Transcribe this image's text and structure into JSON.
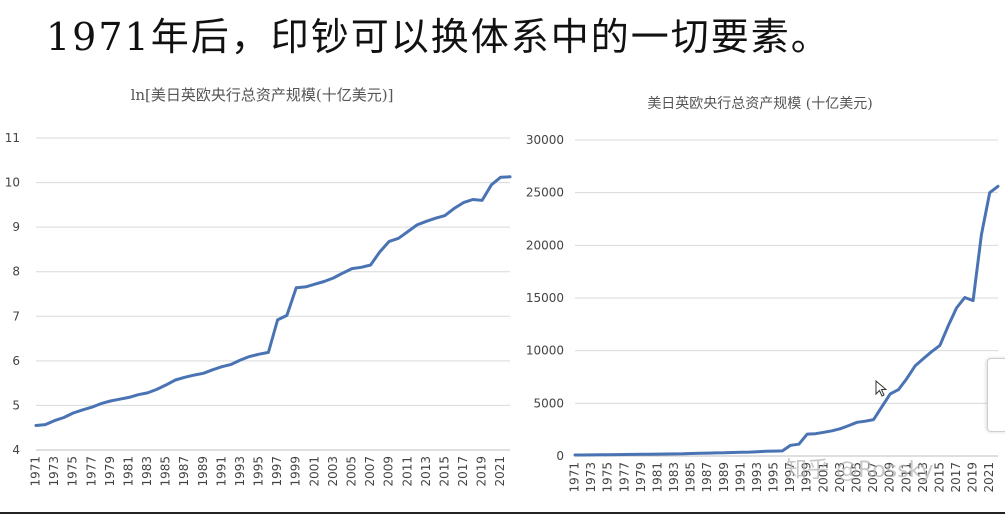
{
  "headline": "1971年后，印钞可以换体系中的一切要素。",
  "watermark": "知乎 @Rossky",
  "chart_data": [
    {
      "type": "line",
      "title": "ln[美日英欧央行总资产规模(十亿美元)]",
      "ylim": [
        4,
        11
      ],
      "yticks": [
        "4",
        "5",
        "6",
        "7",
        "8",
        "9",
        "10",
        "11"
      ],
      "xticks": [
        "1971",
        "1973",
        "1975",
        "1977",
        "1979",
        "1981",
        "1983",
        "1985",
        "1987",
        "1989",
        "1991",
        "1993",
        "1995",
        "1997",
        "1999",
        "2001",
        "2003",
        "2005",
        "2007",
        "2009",
        "2011",
        "2013",
        "2015",
        "2017",
        "2019",
        "2021"
      ],
      "grid": true,
      "x": [
        1971,
        1972,
        1973,
        1974,
        1975,
        1976,
        1977,
        1978,
        1979,
        1980,
        1981,
        1982,
        1983,
        1984,
        1985,
        1986,
        1987,
        1988,
        1989,
        1990,
        1991,
        1992,
        1993,
        1994,
        1995,
        1996,
        1997,
        1998,
        1999,
        2000,
        2001,
        2002,
        2003,
        2004,
        2005,
        2006,
        2007,
        2008,
        2009,
        2010,
        2011,
        2012,
        2013,
        2014,
        2015,
        2016,
        2017,
        2018,
        2019,
        2020,
        2021,
        2022
      ],
      "values": [
        4.55,
        4.57,
        4.66,
        4.73,
        4.83,
        4.9,
        4.96,
        5.04,
        5.1,
        5.14,
        5.18,
        5.24,
        5.28,
        5.36,
        5.46,
        5.57,
        5.63,
        5.68,
        5.72,
        5.8,
        5.87,
        5.92,
        6.02,
        6.1,
        6.15,
        6.19,
        6.92,
        7.02,
        7.64,
        7.66,
        7.72,
        7.78,
        7.86,
        7.97,
        8.07,
        8.1,
        8.15,
        8.45,
        8.68,
        8.75,
        8.9,
        9.05,
        9.13,
        9.2,
        9.26,
        9.42,
        9.55,
        9.62,
        9.6,
        9.95,
        10.12,
        10.13
      ]
    },
    {
      "type": "line",
      "title": "美日英欧央行总资产规模 (十亿美元)",
      "ylim": [
        0,
        30000
      ],
      "yticks": [
        "0",
        "5000",
        "10000",
        "15000",
        "20000",
        "25000",
        "30000"
      ],
      "xticks": [
        "1971",
        "1973",
        "1975",
        "1977",
        "1979",
        "1981",
        "1983",
        "1985",
        "1987",
        "1989",
        "1991",
        "1993",
        "1995",
        "1997",
        "1999",
        "2001",
        "2003",
        "2005",
        "2007",
        "2009",
        "2011",
        "2013",
        "2015",
        "2017",
        "2019",
        "2021"
      ],
      "grid": true,
      "x": [
        1971,
        1972,
        1973,
        1974,
        1975,
        1976,
        1977,
        1978,
        1979,
        1980,
        1981,
        1982,
        1983,
        1984,
        1985,
        1986,
        1987,
        1988,
        1989,
        1990,
        1991,
        1992,
        1993,
        1994,
        1995,
        1996,
        1997,
        1998,
        1999,
        2000,
        2001,
        2002,
        2003,
        2004,
        2005,
        2006,
        2007,
        2008,
        2009,
        2010,
        2011,
        2012,
        2013,
        2014,
        2015,
        2016,
        2017,
        2018,
        2019,
        2020,
        2021,
        2022
      ],
      "values": [
        95,
        97,
        105,
        113,
        125,
        134,
        143,
        154,
        164,
        171,
        178,
        188,
        196,
        213,
        235,
        262,
        279,
        293,
        305,
        330,
        354,
        372,
        411,
        446,
        469,
        488,
        1012,
        1119,
        2080,
        2120,
        2250,
        2390,
        2590,
        2890,
        3200,
        3300,
        3460,
        4680,
        5900,
        6300,
        7350,
        8550,
        9250,
        9900,
        10500,
        12350,
        14050,
        15050,
        14750,
        21000,
        25000,
        25600
      ]
    }
  ]
}
